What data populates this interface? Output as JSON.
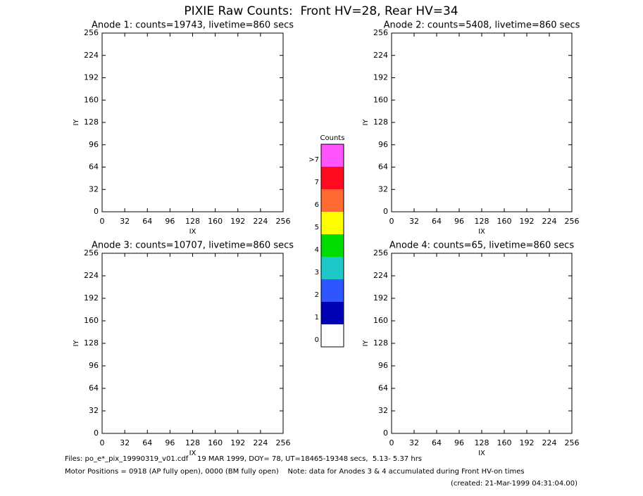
{
  "title": "PIXIE Raw Counts:  Front HV=28, Rear HV=34",
  "chart_data": [
    {
      "type": "heatmap",
      "title": "Anode 1: counts=19743, livetime=860 secs",
      "x_label": "IX",
      "y_label": "IY",
      "xlim": [
        0,
        256
      ],
      "xticks": [
        0,
        32,
        64,
        96,
        128,
        160,
        192,
        224,
        256
      ],
      "ylim": [
        0,
        256
      ],
      "yticks": [
        0,
        32,
        64,
        96,
        128,
        160,
        192,
        224,
        256
      ],
      "grid": false
    },
    {
      "type": "heatmap",
      "title": "Anode 2: counts=5408, livetime=860 secs",
      "x_label": "IX",
      "y_label": "IY",
      "xlim": [
        0,
        256
      ],
      "xticks": [
        0,
        32,
        64,
        96,
        128,
        160,
        192,
        224,
        256
      ],
      "ylim": [
        0,
        256
      ],
      "yticks": [
        0,
        32,
        64,
        96,
        128,
        160,
        192,
        224,
        256
      ],
      "grid": false
    },
    {
      "type": "heatmap",
      "title": "Anode 3: counts=10707, livetime=860 secs",
      "x_label": "IX",
      "y_label": "IY",
      "xlim": [
        0,
        256
      ],
      "xticks": [
        0,
        32,
        64,
        96,
        128,
        160,
        192,
        224,
        256
      ],
      "ylim": [
        0,
        256
      ],
      "yticks": [
        0,
        32,
        64,
        96,
        128,
        160,
        192,
        224,
        256
      ],
      "grid": false
    },
    {
      "type": "heatmap",
      "title": "Anode 4: counts=65, livetime=860 secs",
      "x_label": "IX",
      "y_label": "IY",
      "xlim": [
        0,
        256
      ],
      "xticks": [
        0,
        32,
        64,
        96,
        128,
        160,
        192,
        224,
        256
      ],
      "ylim": [
        0,
        256
      ],
      "yticks": [
        0,
        32,
        64,
        96,
        128,
        160,
        192,
        224,
        256
      ],
      "grid": false
    }
  ],
  "colorbar": {
    "title": "Counts",
    "labels": [
      "0",
      "1",
      "2",
      "3",
      "4",
      "5",
      "6",
      "7",
      ">7"
    ],
    "colors": [
      "#ffffff",
      "#0000b4",
      "#2f55ff",
      "#1ec8c8",
      "#00dc00",
      "#ffff00",
      "#ff6a32",
      "#ff0a1e",
      "#ff55ff"
    ]
  },
  "footer": [
    "Files: po_e*_pix_19990319_v01.cdf    19 MAR 1999, DOY= 78, UT=18465-19348 secs,  5.13- 5.37 hrs",
    "Motor Positions = 0918 (AP fully open), 0000 (BM fully open)    Note: data for Anodes 3 & 4 accumulated during Front HV-on times",
    "(created: 21-Mar-1999 04:31:04.00)"
  ]
}
